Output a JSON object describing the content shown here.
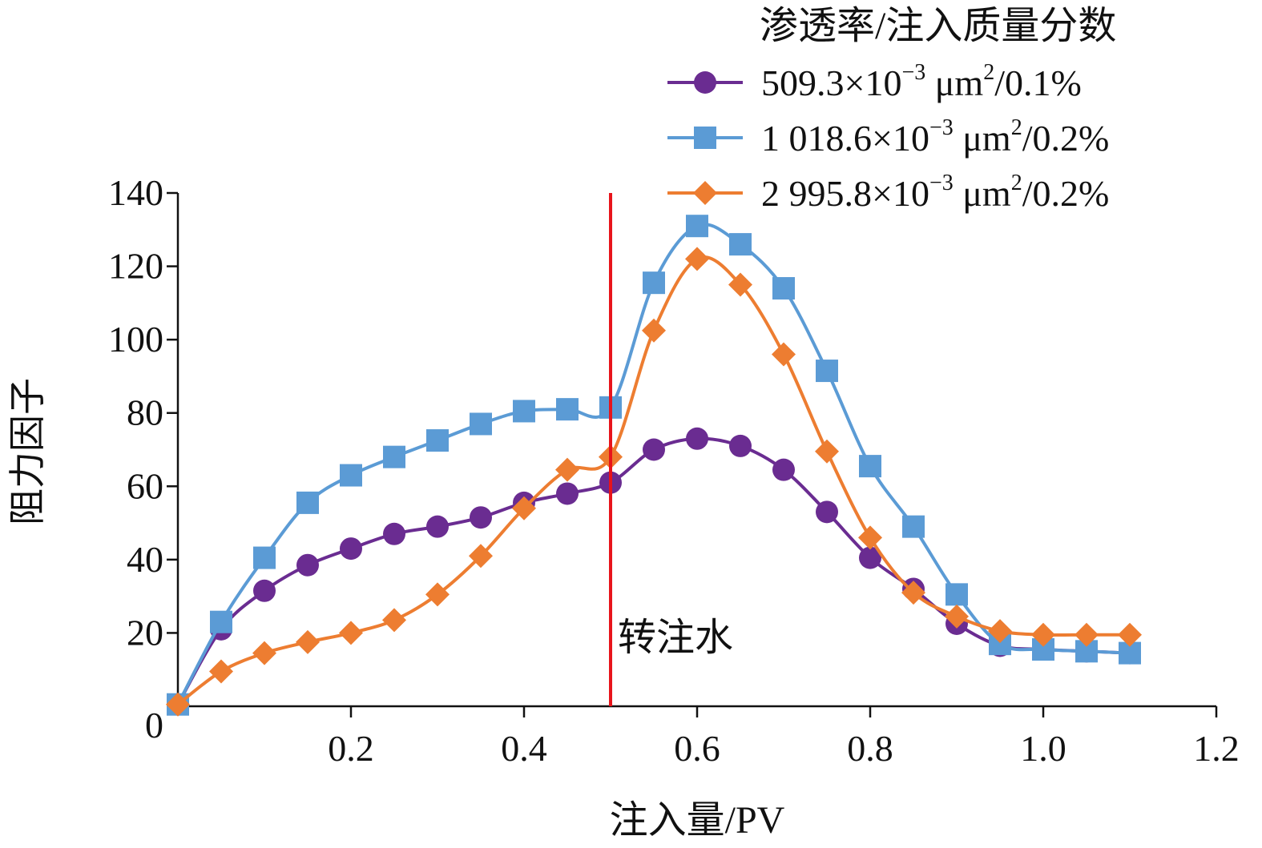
{
  "chart_data": {
    "type": "line",
    "xlabel": "注入量/PV",
    "ylabel": "阻力因子",
    "xlim": [
      0,
      1.2
    ],
    "ylim": [
      0,
      140
    ],
    "x_ticks": [
      {
        "value": 0.2,
        "label": "0.2"
      },
      {
        "value": 0.4,
        "label": "0.4"
      },
      {
        "value": 0.6,
        "label": "0.6"
      },
      {
        "value": 0.8,
        "label": "0.8"
      },
      {
        "value": 1.0,
        "label": "1.0"
      },
      {
        "value": 1.2,
        "label": "1.2"
      }
    ],
    "y_ticks": [
      {
        "value": 0,
        "label": "0"
      },
      {
        "value": 20,
        "label": "20"
      },
      {
        "value": 40,
        "label": "40"
      },
      {
        "value": 60,
        "label": "60"
      },
      {
        "value": 80,
        "label": "80"
      },
      {
        "value": 100,
        "label": "100"
      },
      {
        "value": 120,
        "label": "120"
      },
      {
        "value": 140,
        "label": "140"
      }
    ],
    "grid": false,
    "legend": {
      "title": "渗透率/注入质量分数",
      "placement": "top-right"
    },
    "annotation": {
      "x": 0.5,
      "label": "转注水",
      "color": "#e8141b"
    },
    "series": [
      {
        "name": "509.3×10⁻³ μm²/0.1%",
        "marker": "circle",
        "color": "#6a2c91",
        "x": [
          0,
          0.05,
          0.1,
          0.15,
          0.2,
          0.25,
          0.3,
          0.35,
          0.4,
          0.45,
          0.5,
          0.55,
          0.6,
          0.65,
          0.7,
          0.75,
          0.8,
          0.85,
          0.9,
          0.95,
          1.0,
          1.05,
          1.1
        ],
        "y": [
          0.5,
          21,
          31.5,
          38.5,
          43,
          47,
          49,
          51.5,
          55.5,
          58,
          61,
          70,
          73,
          71,
          64.5,
          53,
          40.5,
          32,
          22.5,
          16.5,
          15.5,
          15,
          14.5
        ]
      },
      {
        "name": "1 018.6×10⁻³ μm²/0.2%",
        "marker": "square",
        "color": "#5b9bd5",
        "x": [
          0,
          0.05,
          0.1,
          0.15,
          0.2,
          0.25,
          0.3,
          0.35,
          0.4,
          0.45,
          0.5,
          0.55,
          0.6,
          0.65,
          0.7,
          0.75,
          0.8,
          0.85,
          0.9,
          0.95,
          1.0,
          1.05,
          1.1
        ],
        "y": [
          0.5,
          23,
          40.5,
          55.5,
          63,
          68,
          72.5,
          77,
          80.5,
          81,
          81.5,
          115.5,
          131,
          126,
          114,
          91.5,
          65.5,
          49,
          30.5,
          17,
          15.5,
          15,
          14.5
        ]
      },
      {
        "name": "2 995.8×10⁻³ μm²/0.2%",
        "marker": "diamond",
        "color": "#ed7d31",
        "x": [
          0,
          0.05,
          0.1,
          0.15,
          0.2,
          0.25,
          0.3,
          0.35,
          0.4,
          0.45,
          0.5,
          0.55,
          0.6,
          0.65,
          0.7,
          0.75,
          0.8,
          0.85,
          0.9,
          0.95,
          1.0,
          1.05,
          1.1
        ],
        "y": [
          0.5,
          9.5,
          14.5,
          17.5,
          20,
          23.5,
          30.5,
          41,
          54,
          64.5,
          68,
          102.5,
          122,
          115,
          96,
          69.5,
          46,
          31,
          24.5,
          20.5,
          19.5,
          19.5,
          19.5
        ]
      }
    ]
  }
}
